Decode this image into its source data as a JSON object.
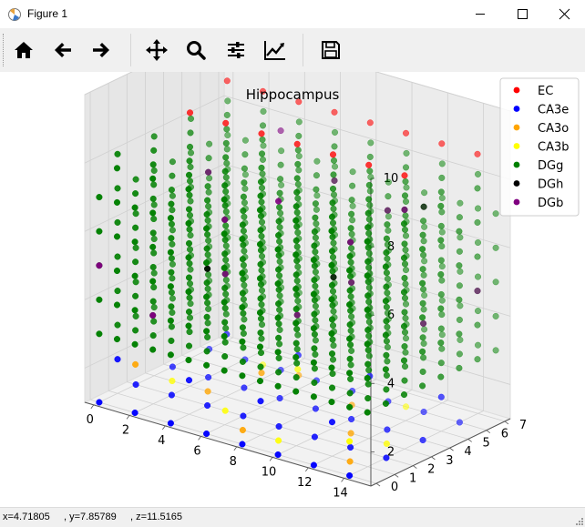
{
  "window": {
    "title": "Figure 1",
    "controls": [
      "minimize",
      "maximize",
      "close"
    ]
  },
  "toolbar": {
    "buttons": [
      {
        "name": "home",
        "icon": "home-icon"
      },
      {
        "name": "back",
        "icon": "arrow-left-icon"
      },
      {
        "name": "forward",
        "icon": "arrow-right-icon"
      },
      {
        "name": "pan",
        "icon": "move-icon"
      },
      {
        "name": "zoom",
        "icon": "magnifier-icon"
      },
      {
        "name": "subplots",
        "icon": "sliders-icon"
      },
      {
        "name": "edit-axes",
        "icon": "chart-line-icon"
      },
      {
        "name": "save",
        "icon": "floppy-disk-icon"
      }
    ]
  },
  "status": {
    "text": "x=4.71805     , y=7.85789     , z=11.5165"
  },
  "chart_data": {
    "type": "scatter",
    "title": "Hippocampus",
    "projection": "3d",
    "xlabel": "",
    "ylabel": "",
    "zlabel": "",
    "xlim": [
      -0.5,
      15.5
    ],
    "ylim": [
      -0.3,
      7.3
    ],
    "zlim": [
      1,
      10
    ],
    "xticks": [
      0,
      2,
      4,
      6,
      8,
      10,
      12,
      14
    ],
    "yticks": [
      0,
      1,
      2,
      3,
      4,
      5,
      6,
      7
    ],
    "zticks": [
      2,
      4,
      6,
      8,
      10
    ],
    "grid": true,
    "legend_position": "top-right",
    "colors": {
      "EC": "#ff0000",
      "CA3e": "#0000ff",
      "CA3o": "#ffa500",
      "CA3b": "#ffff00",
      "DGg": "#008000",
      "DGh": "#000000",
      "DGb": "#800080"
    },
    "series": [
      {
        "name": "EC",
        "points": [
          [
            1,
            6,
            9
          ],
          [
            3,
            6,
            9
          ],
          [
            5,
            6,
            9
          ],
          [
            7,
            6,
            9
          ],
          [
            9,
            6,
            9
          ],
          [
            11,
            6,
            9
          ],
          [
            13,
            6,
            9
          ],
          [
            15,
            6,
            9
          ],
          [
            2,
            3,
            9
          ],
          [
            4,
            3,
            9
          ],
          [
            6,
            3,
            9
          ],
          [
            8,
            3,
            9
          ],
          [
            10,
            3,
            9
          ],
          [
            12,
            3,
            9
          ],
          [
            14,
            3,
            9
          ]
        ]
      },
      {
        "name": "CA3e",
        "points": [
          [
            0,
            0,
            1
          ],
          [
            2,
            0,
            1
          ],
          [
            4,
            0,
            1
          ],
          [
            6,
            0,
            1
          ],
          [
            8,
            0,
            1
          ],
          [
            10,
            0,
            1
          ],
          [
            12,
            0,
            1
          ],
          [
            14,
            0,
            1
          ],
          [
            0,
            2,
            1
          ],
          [
            2,
            2,
            1
          ],
          [
            4,
            2,
            1
          ],
          [
            6,
            2,
            1
          ],
          [
            8,
            2,
            1
          ],
          [
            10,
            2,
            1
          ],
          [
            12,
            2,
            1
          ],
          [
            14,
            2,
            1
          ],
          [
            0,
            4,
            1
          ],
          [
            2,
            4,
            1
          ],
          [
            4,
            4,
            1
          ],
          [
            6,
            4,
            1
          ],
          [
            8,
            4,
            1
          ],
          [
            10,
            4,
            1
          ],
          [
            12,
            4,
            1
          ],
          [
            14,
            4,
            1
          ],
          [
            0,
            6,
            1
          ],
          [
            2,
            6,
            1
          ],
          [
            4,
            6,
            1
          ],
          [
            6,
            6,
            1
          ],
          [
            8,
            6,
            1
          ],
          [
            10,
            6,
            1
          ],
          [
            12,
            6,
            1
          ],
          [
            14,
            6,
            1
          ],
          [
            0,
            1,
            2
          ],
          [
            4,
            1,
            2
          ],
          [
            8,
            1,
            2
          ],
          [
            12,
            1,
            2
          ],
          [
            2,
            5,
            2
          ],
          [
            6,
            5,
            2
          ],
          [
            10,
            5,
            2
          ],
          [
            14,
            5,
            2
          ]
        ]
      },
      {
        "name": "CA3o",
        "points": [
          [
            3,
            3,
            1
          ],
          [
            7,
            1,
            1
          ],
          [
            11,
            3,
            1
          ],
          [
            5,
            6,
            1
          ],
          [
            9,
            5,
            1
          ],
          [
            13,
            1,
            1
          ],
          [
            1,
            1,
            2
          ],
          [
            6,
            3,
            2
          ]
        ]
      },
      {
        "name": "CA3b",
        "points": [
          [
            1,
            3,
            1
          ],
          [
            5,
            2,
            1
          ],
          [
            9,
            1,
            1
          ],
          [
            13,
            3,
            1
          ],
          [
            3,
            6,
            1
          ],
          [
            11,
            6,
            1
          ],
          [
            7,
            4,
            2
          ],
          [
            14,
            0,
            2
          ]
        ]
      },
      {
        "name": "DGg",
        "points": "grid x=0..15 step 1, y=0..7 step 1, z in {3,4,5,6,7,8}"
      },
      {
        "name": "DGh",
        "points": [
          [
            4,
            2,
            5
          ],
          [
            9,
            4,
            5
          ],
          [
            12,
            6,
            7
          ]
        ]
      },
      {
        "name": "DGb",
        "points": [
          [
            0,
            0,
            5
          ],
          [
            5,
            2,
            5
          ],
          [
            10,
            4,
            5
          ],
          [
            15,
            6,
            5
          ],
          [
            2,
            4,
            7
          ],
          [
            7,
            6,
            7
          ],
          [
            12,
            2,
            7
          ],
          [
            4,
            6,
            8
          ],
          [
            9,
            1,
            8
          ],
          [
            14,
            3,
            8
          ],
          [
            3,
            0,
            4
          ],
          [
            8,
            3,
            4
          ],
          [
            13,
            5,
            4
          ],
          [
            6,
            1,
            7
          ],
          [
            11,
            5,
            7
          ]
        ]
      }
    ]
  }
}
